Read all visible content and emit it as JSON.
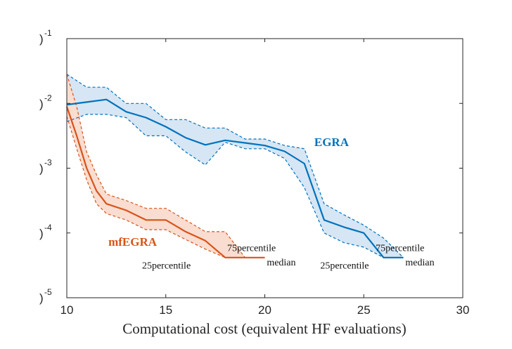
{
  "chart_data": {
    "type": "line",
    "xlabel": "Computational cost (equivalent HF evaluations)",
    "ylabel": "",
    "xlim": [
      10,
      30
    ],
    "ylim_log10": [
      -5,
      -1
    ],
    "y_scale": "log",
    "x_ticks": [
      10,
      15,
      20,
      25,
      30
    ],
    "x_tick_labels": [
      "10",
      "15",
      "20",
      "25",
      "30"
    ],
    "y_ticks_log10": [
      -1,
      -2,
      -3,
      -4,
      -5
    ],
    "y_tick_base_labels": [
      ")",
      ")",
      ")",
      ")",
      ")"
    ],
    "y_tick_exponents": [
      "-1",
      "-2",
      "-3",
      "-4",
      "-5"
    ],
    "grid": false,
    "series": [
      {
        "name": "EGRA",
        "color": "#0072bd",
        "fill": "#d6e6f4",
        "x": [
          10,
          11,
          12,
          13,
          14,
          15,
          16,
          17,
          18,
          19,
          20,
          21,
          22,
          23,
          24,
          25,
          26,
          27
        ],
        "median_log10": [
          -2.02,
          -1.98,
          -1.94,
          -2.13,
          -2.22,
          -2.36,
          -2.53,
          -2.64,
          -2.57,
          -2.61,
          -2.65,
          -2.74,
          -2.93,
          -3.8,
          -3.91,
          -4.0,
          -4.38,
          -4.38
        ],
        "p25_log10": [
          -2.28,
          -2.17,
          -2.17,
          -2.22,
          -2.5,
          -2.5,
          -2.75,
          -2.95,
          -2.6,
          -2.7,
          -2.7,
          -2.85,
          -3.3,
          -4.0,
          -4.15,
          -4.22,
          -4.38,
          -4.38
        ],
        "p75_log10": [
          -1.55,
          -1.75,
          -1.75,
          -2.0,
          -2.0,
          -2.25,
          -2.25,
          -2.38,
          -2.38,
          -2.55,
          -2.55,
          -2.65,
          -2.7,
          -3.55,
          -3.72,
          -3.88,
          -4.08,
          -4.38
        ]
      },
      {
        "name": "mfEGRA",
        "color": "#d95319",
        "fill": "#f9ddd0",
        "x": [
          10,
          10.5,
          11,
          11.5,
          12,
          13,
          14,
          15,
          16,
          17,
          18,
          19,
          20
        ],
        "median_log10": [
          -2.05,
          -2.5,
          -3.0,
          -3.35,
          -3.55,
          -3.65,
          -3.8,
          -3.8,
          -3.98,
          -4.12,
          -4.38,
          -4.38,
          -4.38
        ],
        "p25_log10": [
          -2.2,
          -2.7,
          -3.18,
          -3.55,
          -3.7,
          -3.8,
          -3.95,
          -3.95,
          -4.1,
          -4.25,
          -4.38,
          -4.38,
          -4.38
        ],
        "p75_log10": [
          -1.55,
          -2.05,
          -2.75,
          -3.1,
          -3.4,
          -3.5,
          -3.62,
          -3.62,
          -3.8,
          -3.98,
          -3.98,
          -4.38,
          -4.38
        ]
      }
    ],
    "annotations": [
      {
        "text": "EGRA",
        "series": "EGRA",
        "x": 22.5,
        "y_log10": -2.66
      },
      {
        "text": "mfEGRA",
        "series": "mfEGRA",
        "x": 12.1,
        "y_log10": -4.2
      },
      {
        "text": "75percentile",
        "x": 18.1,
        "y_log10": -4.28
      },
      {
        "text": "25percentile",
        "x": 13.8,
        "y_log10": -4.55
      },
      {
        "text": "median",
        "x": 20.1,
        "y_log10": -4.5
      },
      {
        "text": "75percentile",
        "x": 25.6,
        "y_log10": -4.28
      },
      {
        "text": "25percentile",
        "x": 22.8,
        "y_log10": -4.55
      },
      {
        "text": "median",
        "x": 27.1,
        "y_log10": -4.5
      }
    ]
  }
}
